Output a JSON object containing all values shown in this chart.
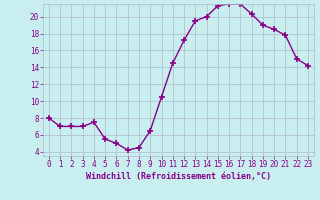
{
  "x": [
    0,
    1,
    2,
    3,
    4,
    5,
    6,
    7,
    8,
    9,
    10,
    11,
    12,
    13,
    14,
    15,
    16,
    17,
    18,
    19,
    20,
    21,
    22,
    23
  ],
  "y": [
    8.0,
    7.0,
    7.0,
    7.0,
    7.5,
    5.5,
    5.0,
    4.2,
    4.5,
    6.5,
    10.5,
    14.5,
    17.2,
    19.5,
    20.0,
    21.3,
    21.5,
    21.5,
    20.3,
    19.0,
    18.5,
    17.8,
    15.0,
    14.2
  ],
  "line_color": "#880088",
  "marker": "+",
  "marker_size": 4,
  "marker_lw": 1.2,
  "bg_color": "#c8eef0",
  "grid_color": "#b0b8c8",
  "xlabel": "Windchill (Refroidissement éolien,°C)",
  "ylabel": "",
  "xlim": [
    -0.5,
    23.5
  ],
  "ylim": [
    3.5,
    21.5
  ],
  "xticks": [
    0,
    1,
    2,
    3,
    4,
    5,
    6,
    7,
    8,
    9,
    10,
    11,
    12,
    13,
    14,
    15,
    16,
    17,
    18,
    19,
    20,
    21,
    22,
    23
  ],
  "yticks": [
    4,
    6,
    8,
    10,
    12,
    14,
    16,
    18,
    20
  ],
  "font_color": "#880088",
  "axis_fontsize": 6.0,
  "tick_fontsize": 5.5,
  "line_width": 1.0
}
